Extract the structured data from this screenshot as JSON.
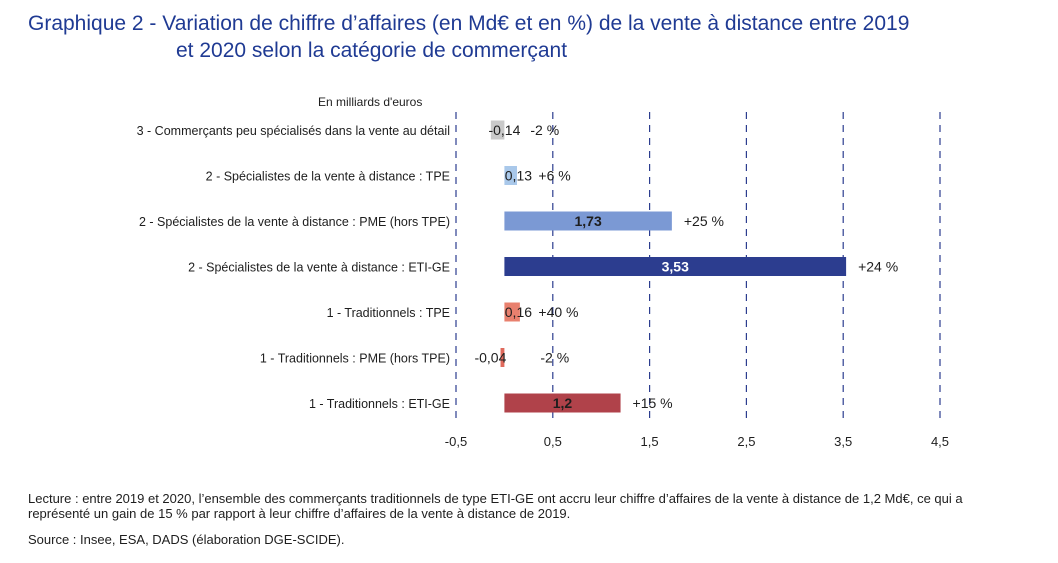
{
  "title_line1": "Graphique 2 - Variation de chiffre d’affaires (en Md€ et en %) de la vente à distance entre 2019",
  "title_line2": "et 2020 selon la catégorie de commerçant",
  "note": "Lecture : entre 2019 et 2020, l’ensemble des commerçants traditionnels de type ETI-GE ont accru leur chiffre d’affaires de la vente à distance de 1,2 Md€, ce qui a représenté un gain de 15 % par rapport à leur chiffre d’affaires de la vente à distance de 2019.",
  "source": "Source : Insee, ESA, DADS (élaboration DGE-SCIDE).",
  "chart_data": {
    "type": "bar",
    "orientation": "horizontal",
    "unit_label": "En milliards d'euros",
    "xlim": [
      -0.5,
      4.5
    ],
    "x_ticks": [
      -0.5,
      0.5,
      1.5,
      2.5,
      3.5,
      4.5
    ],
    "x_tick_labels": [
      "-0,5",
      "0,5",
      "1,5",
      "2,5",
      "3,5",
      "4,5"
    ],
    "grid": "vertical dashed",
    "categories": [
      "3 - Commerçants peu spécialisés dans la vente au détail",
      "2 - Spécialistes de la vente à distance : TPE",
      "2 - Spécialistes de la vente à distance : PME (hors TPE)",
      "2 - Spécialistes de la vente à distance : ETI-GE",
      "1 - Traditionnels : TPE",
      "1 - Traditionnels : PME (hors TPE)",
      "1 - Traditionnels : ETI-GE"
    ],
    "values": [
      -0.14,
      0.13,
      1.73,
      3.53,
      0.16,
      -0.04,
      1.2
    ],
    "value_labels": [
      "-0,14",
      "0,13",
      "1,73",
      "3,53",
      "0,16",
      "-0,04",
      "1,2"
    ],
    "percent_labels": [
      "-2 %",
      "+6 %",
      "+25 %",
      "+24 %",
      "+40 %",
      "-2 %",
      "+15 %"
    ],
    "colors": [
      "#c9c9c9",
      "#a9c8ea",
      "#7b99d4",
      "#2c3d8f",
      "#e8806e",
      "#e06a5c",
      "#b0424a"
    ],
    "value_label_inside": [
      false,
      false,
      true,
      true,
      false,
      false,
      true
    ],
    "value_label_color": [
      "#1e1e1e",
      "#1e1e1e",
      "#1e1e1e",
      "#ffffff",
      "#1e1e1e",
      "#1e1e1e",
      "#1e1e1e"
    ]
  }
}
